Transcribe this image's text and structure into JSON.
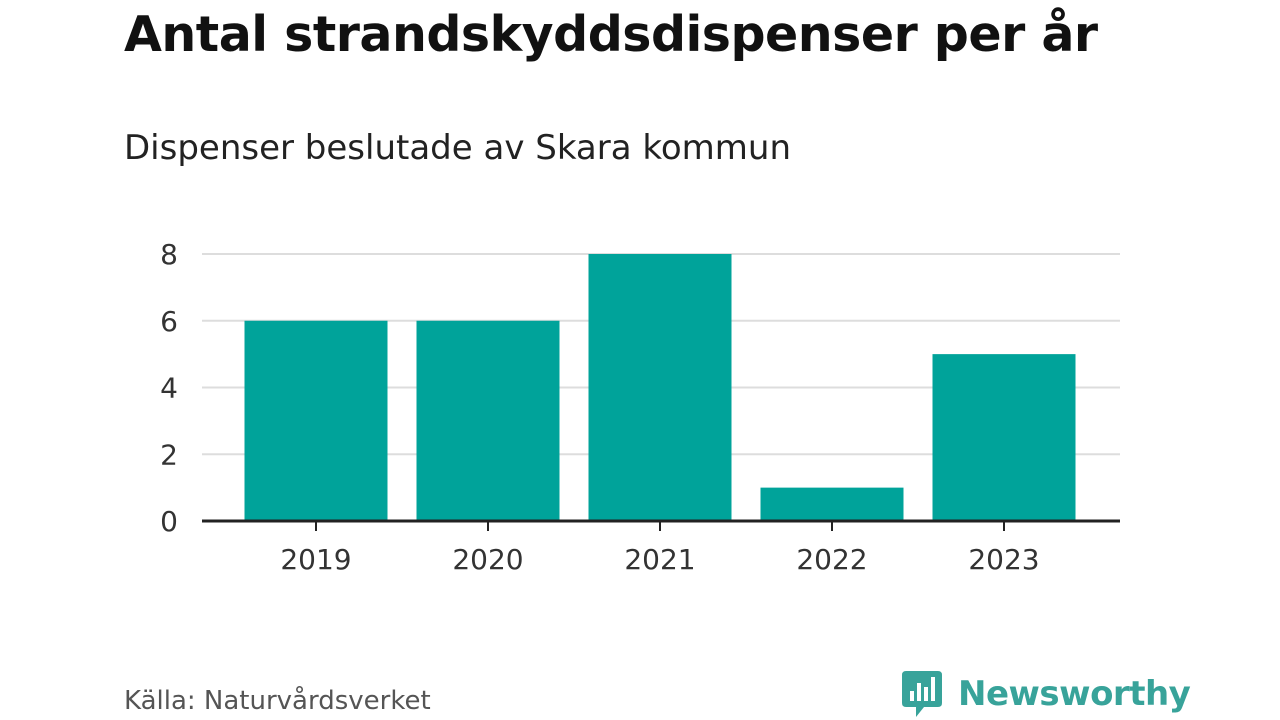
{
  "chart_data": {
    "type": "bar",
    "title": "Antal strandskyddsdispenser per år",
    "subtitle": "Dispenser beslutade av Skara kommun",
    "categories": [
      "2019",
      "2020",
      "2021",
      "2022",
      "2023"
    ],
    "values": [
      6,
      6,
      8,
      1,
      5
    ],
    "yticks": [
      "0",
      "2",
      "4",
      "6",
      "8"
    ],
    "ylim": [
      0,
      8
    ],
    "xlabel": "",
    "ylabel": "",
    "grid": true,
    "bar_color": "#00a39a",
    "grid_color": "#dddddd",
    "axis_color": "#222222"
  },
  "footer": {
    "source": "Källa: Naturvårdsverket",
    "brand": "Newsworthy",
    "brand_color": "#38a39a"
  }
}
